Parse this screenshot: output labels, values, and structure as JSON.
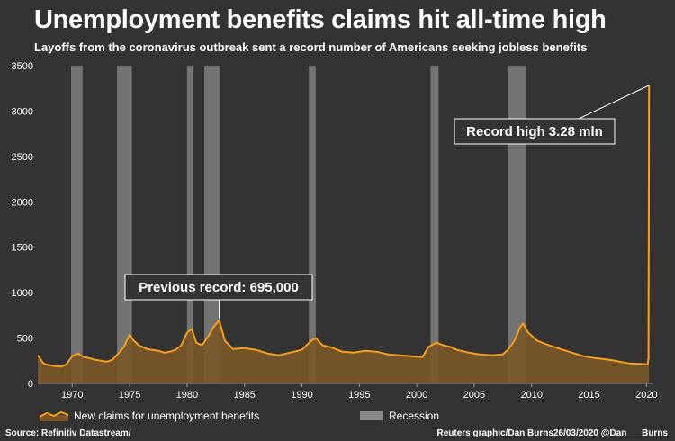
{
  "header": {
    "title": "Unemployment benefits claims hit all-time high",
    "subtitle": "Layoffs from the coronavirus outbreak sent a record number of Americans seeking jobless benefits"
  },
  "chart_data": {
    "type": "area",
    "title": "Unemployment benefits claims hit all-time high",
    "subtitle": "Layoffs from the coronavirus outbreak sent a record number of Americans seeking jobless benefits",
    "xlabel": "",
    "ylabel": "",
    "xlim": [
      1967,
      2020.6
    ],
    "ylim": [
      0,
      3500
    ],
    "x_ticks": [
      1970,
      1975,
      1980,
      1985,
      1990,
      1995,
      2000,
      2005,
      2010,
      2015,
      2020
    ],
    "y_ticks": [
      0,
      500,
      1000,
      1500,
      2000,
      2500,
      3000,
      3500
    ],
    "grid": false,
    "legend_position": "bottom",
    "series": [
      {
        "name": "New claims for unemployment benefits",
        "color": "#f5a01a",
        "fill_color": "#7a5627",
        "x": [
          1967.0,
          1967.5,
          1968.0,
          1968.5,
          1969.0,
          1969.5,
          1970.0,
          1970.5,
          1971.0,
          1971.5,
          1972.0,
          1972.5,
          1973.0,
          1973.5,
          1974.0,
          1974.5,
          1975.0,
          1975.3,
          1975.8,
          1976.5,
          1977.0,
          1977.5,
          1978.0,
          1978.5,
          1979.0,
          1979.5,
          1980.0,
          1980.4,
          1980.8,
          1981.3,
          1981.8,
          1982.3,
          1982.8,
          1983.3,
          1984.0,
          1985.0,
          1986.0,
          1987.0,
          1988.0,
          1989.0,
          1990.0,
          1990.8,
          1991.2,
          1991.8,
          1992.5,
          1993.5,
          1994.5,
          1995.5,
          1996.5,
          1997.5,
          1998.5,
          1999.5,
          2000.5,
          2001.0,
          2001.7,
          2002.3,
          2003.0,
          2003.5,
          2004.5,
          2005.5,
          2006.5,
          2007.5,
          2008.0,
          2008.5,
          2009.0,
          2009.25,
          2009.7,
          2010.5,
          2011.5,
          2012.5,
          2013.5,
          2014.5,
          2015.5,
          2016.5,
          2017.5,
          2018.5,
          2019.5,
          2020.1,
          2020.18,
          2020.22
        ],
        "values": [
          310,
          220,
          200,
          190,
          185,
          210,
          300,
          330,
          290,
          280,
          260,
          250,
          240,
          260,
          330,
          400,
          540,
          480,
          420,
          380,
          370,
          360,
          340,
          350,
          370,
          420,
          560,
          600,
          450,
          420,
          510,
          620,
          695,
          470,
          380,
          390,
          370,
          330,
          310,
          340,
          370,
          470,
          500,
          420,
          400,
          350,
          340,
          360,
          350,
          320,
          310,
          300,
          290,
          400,
          450,
          420,
          400,
          370,
          340,
          320,
          310,
          320,
          380,
          470,
          620,
          660,
          560,
          470,
          420,
          380,
          340,
          300,
          280,
          265,
          245,
          220,
          215,
          210,
          280,
          3283
        ]
      }
    ],
    "recessions": [
      {
        "start": 1969.9,
        "end": 1970.9
      },
      {
        "start": 1973.9,
        "end": 1975.2
      },
      {
        "start": 1980.0,
        "end": 1980.5
      },
      {
        "start": 1981.5,
        "end": 1982.9
      },
      {
        "start": 1990.6,
        "end": 1991.2
      },
      {
        "start": 2001.2,
        "end": 2001.9
      },
      {
        "start": 2007.9,
        "end": 2009.5
      }
    ],
    "recession_label": "Recession",
    "recession_color": "#8a8a8a",
    "annotations": [
      {
        "text": "Previous record: 695,000",
        "x": 1982.8,
        "y": 695
      },
      {
        "text": "Record high 3.28 mln",
        "x": 2020.22,
        "y": 3283
      }
    ]
  },
  "legend": {
    "series_label": "New claims for unemployment benefits",
    "recession_label": "Recession"
  },
  "footer": {
    "source": "Source: Refinitiv Datastream/",
    "credit": "Reuters graphic/Dan Burns26/03/2020 @Dan___Burns"
  }
}
